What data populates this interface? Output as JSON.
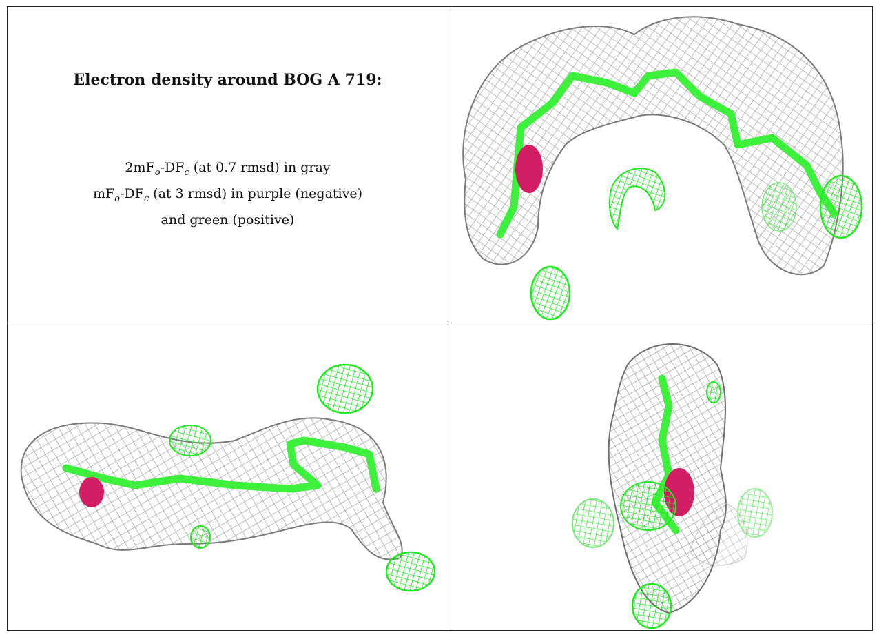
{
  "figure": {
    "heading": "Electron density around BOG A 719:",
    "legend": {
      "line1": {
        "prefix": "2mF",
        "sub1": "o",
        "mid": "-DF",
        "sub2": "c",
        "suffix": " (at 0.7 rmsd) in gray"
      },
      "line2": {
        "prefix": "mF",
        "sub1": "o",
        "mid": "-DF",
        "sub2": "c",
        "suffix": " (at 3 rmsd) in purple (negative)"
      },
      "line3": "and green (positive)"
    },
    "colors": {
      "density_2fo": "#8a8a8a",
      "difference_positive": "#22e822",
      "difference_negative": "#e0387a",
      "ligand_carbon": "#3cf03c",
      "ligand_oxygen": "#d21e64"
    },
    "panels": [
      "view-top-right",
      "view-bottom-left",
      "view-bottom-right"
    ]
  }
}
